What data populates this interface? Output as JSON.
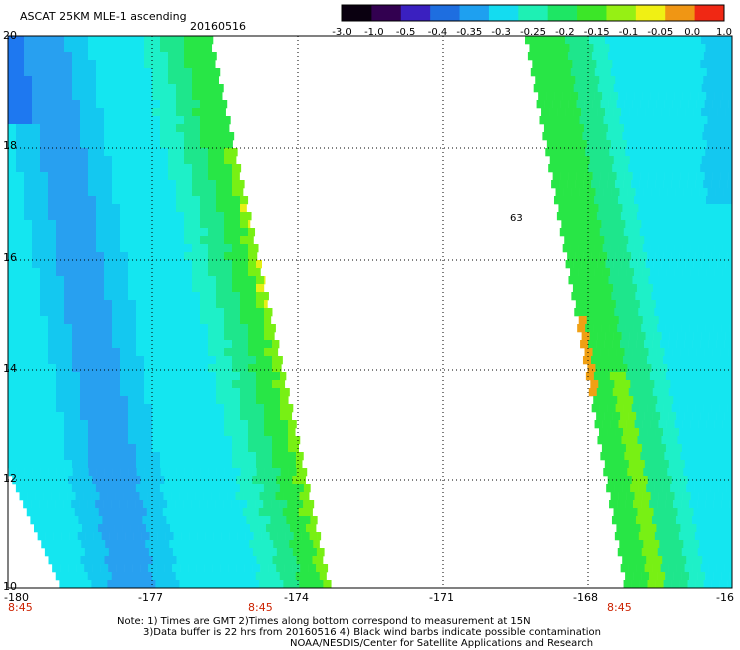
{
  "header": {
    "title": "ASCAT 25KM MLE-1 ascending",
    "date": "20160516"
  },
  "colorbar": {
    "ticks": [
      "-3.0",
      "-1.0",
      "-0.5",
      "-0.4",
      "-0.35",
      "-0.3",
      "-0.25",
      "-0.2",
      "-0.15",
      "-0.1",
      "-0.05",
      "0.0",
      "1.0"
    ],
    "colors": [
      "#0a0010",
      "#320050",
      "#3a20c0",
      "#1e6ee0",
      "#1ea0f0",
      "#14dcf0",
      "#1ef0b4",
      "#1ee664",
      "#3ce628",
      "#96f014",
      "#f0f014",
      "#f09614",
      "#f02814"
    ]
  },
  "axes": {
    "lon_labels": [
      "-180",
      "-177",
      "-174",
      "-171",
      "-168",
      "-16"
    ],
    "lat_labels": [
      "20",
      "18",
      "16",
      "14",
      "12",
      "10"
    ],
    "time_labels": [
      "8:45",
      "8:45",
      "8:45"
    ]
  },
  "annotation": {
    "text": "63"
  },
  "notes": {
    "line1": "Note: 1) Times are GMT 2)Times along bottom correspond to measurement at 15N",
    "line2": "3)Data buffer is 22 hrs from 20160516 4) Black wind barbs indicate possible contamination",
    "line3": "NOAA/NESDIS/Center for Satellite Applications and Research"
  },
  "palette": {
    "deep_blue": "#1e78f0",
    "blue": "#28a0f0",
    "light_blue": "#14c8f0",
    "cyan": "#14e6f0",
    "aqua": "#1ef0c8",
    "teal_green": "#1ee68c",
    "green": "#28e646",
    "lime": "#78f014",
    "yellow": "#e6f014",
    "orange": "#f0a014"
  }
}
